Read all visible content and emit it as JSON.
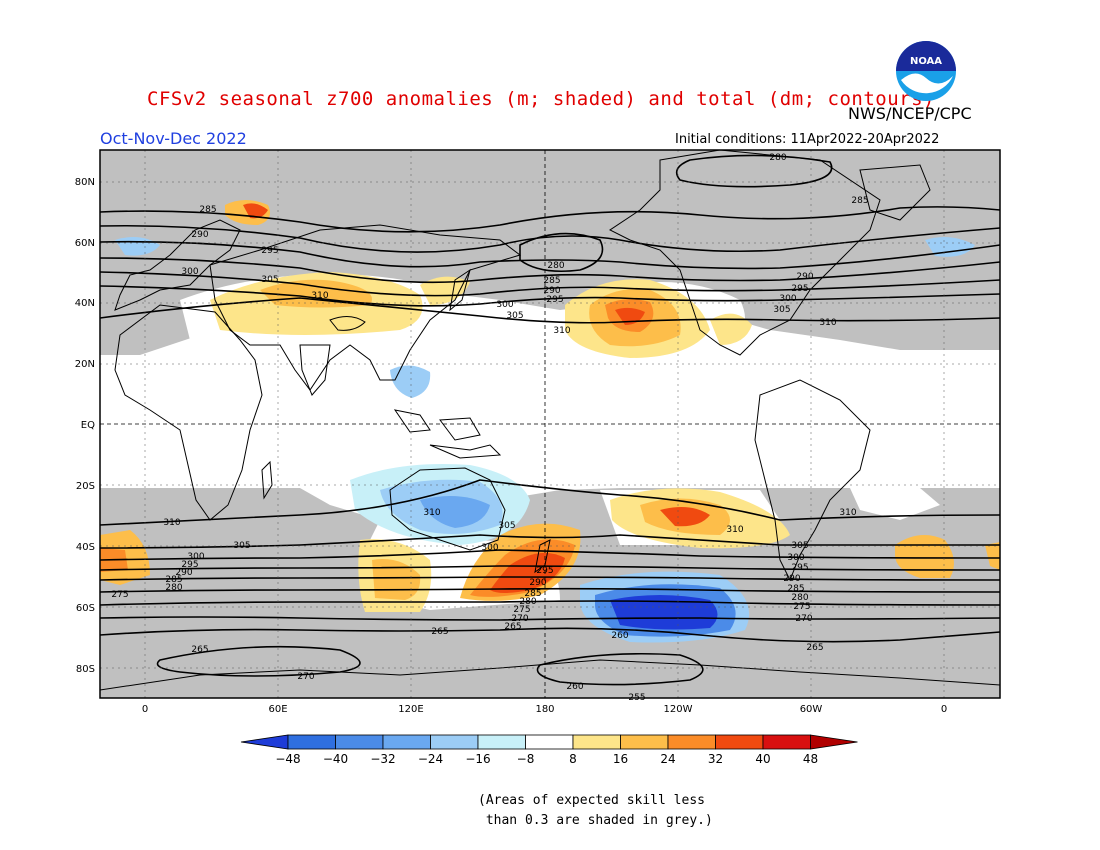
{
  "title": "CFSv2 seasonal z700 anomalies (m; shaded) and total (dm; contours)",
  "agency": "NWS/NCEP/CPC",
  "logo_text": "NOAA",
  "season": "Oct-Nov-Dec 2022",
  "initial_conditions": "Initial conditions: 11Apr2022-20Apr2022",
  "lat_labels": [
    "80N",
    "60N",
    "40N",
    "20N",
    "EQ",
    "20S",
    "40S",
    "60S",
    "80S"
  ],
  "lon_labels": [
    "0",
    "60E",
    "120E",
    "180",
    "120W",
    "60W",
    "0"
  ],
  "colorbar": {
    "labels": [
      "-48",
      "-40",
      "-32",
      "-24",
      "-16",
      "-8",
      "8",
      "16",
      "24",
      "32",
      "40",
      "48"
    ],
    "colors": [
      "#1e3cd8",
      "#2f6fe0",
      "#4b8be8",
      "#6aa8f0",
      "#9ccdf6",
      "#c8f0f8",
      "#ffffff",
      "#fde58a",
      "#fdbe4a",
      "#fb8c28",
      "#f04a10",
      "#d81010",
      "#b00000"
    ]
  },
  "note_line1": "(Areas of expected skill less",
  "note_line2": " than 0.3 are shaded in grey.)",
  "contour_labels": [
    "280",
    "285",
    "290",
    "295",
    "300",
    "305",
    "310",
    "265",
    "270",
    "275",
    "260",
    "255"
  ],
  "chart_data": {
    "type": "map",
    "variable": "700 hPa geopotential height",
    "shaded": "anomalies (m)",
    "contours": "total (dm)",
    "anomaly_levels": [
      -48,
      -40,
      -32,
      -24,
      -16,
      -8,
      8,
      16,
      24,
      32,
      40,
      48
    ],
    "contour_levels_dm": [
      255,
      260,
      265,
      270,
      275,
      280,
      285,
      290,
      295,
      300,
      305,
      310
    ]
  }
}
